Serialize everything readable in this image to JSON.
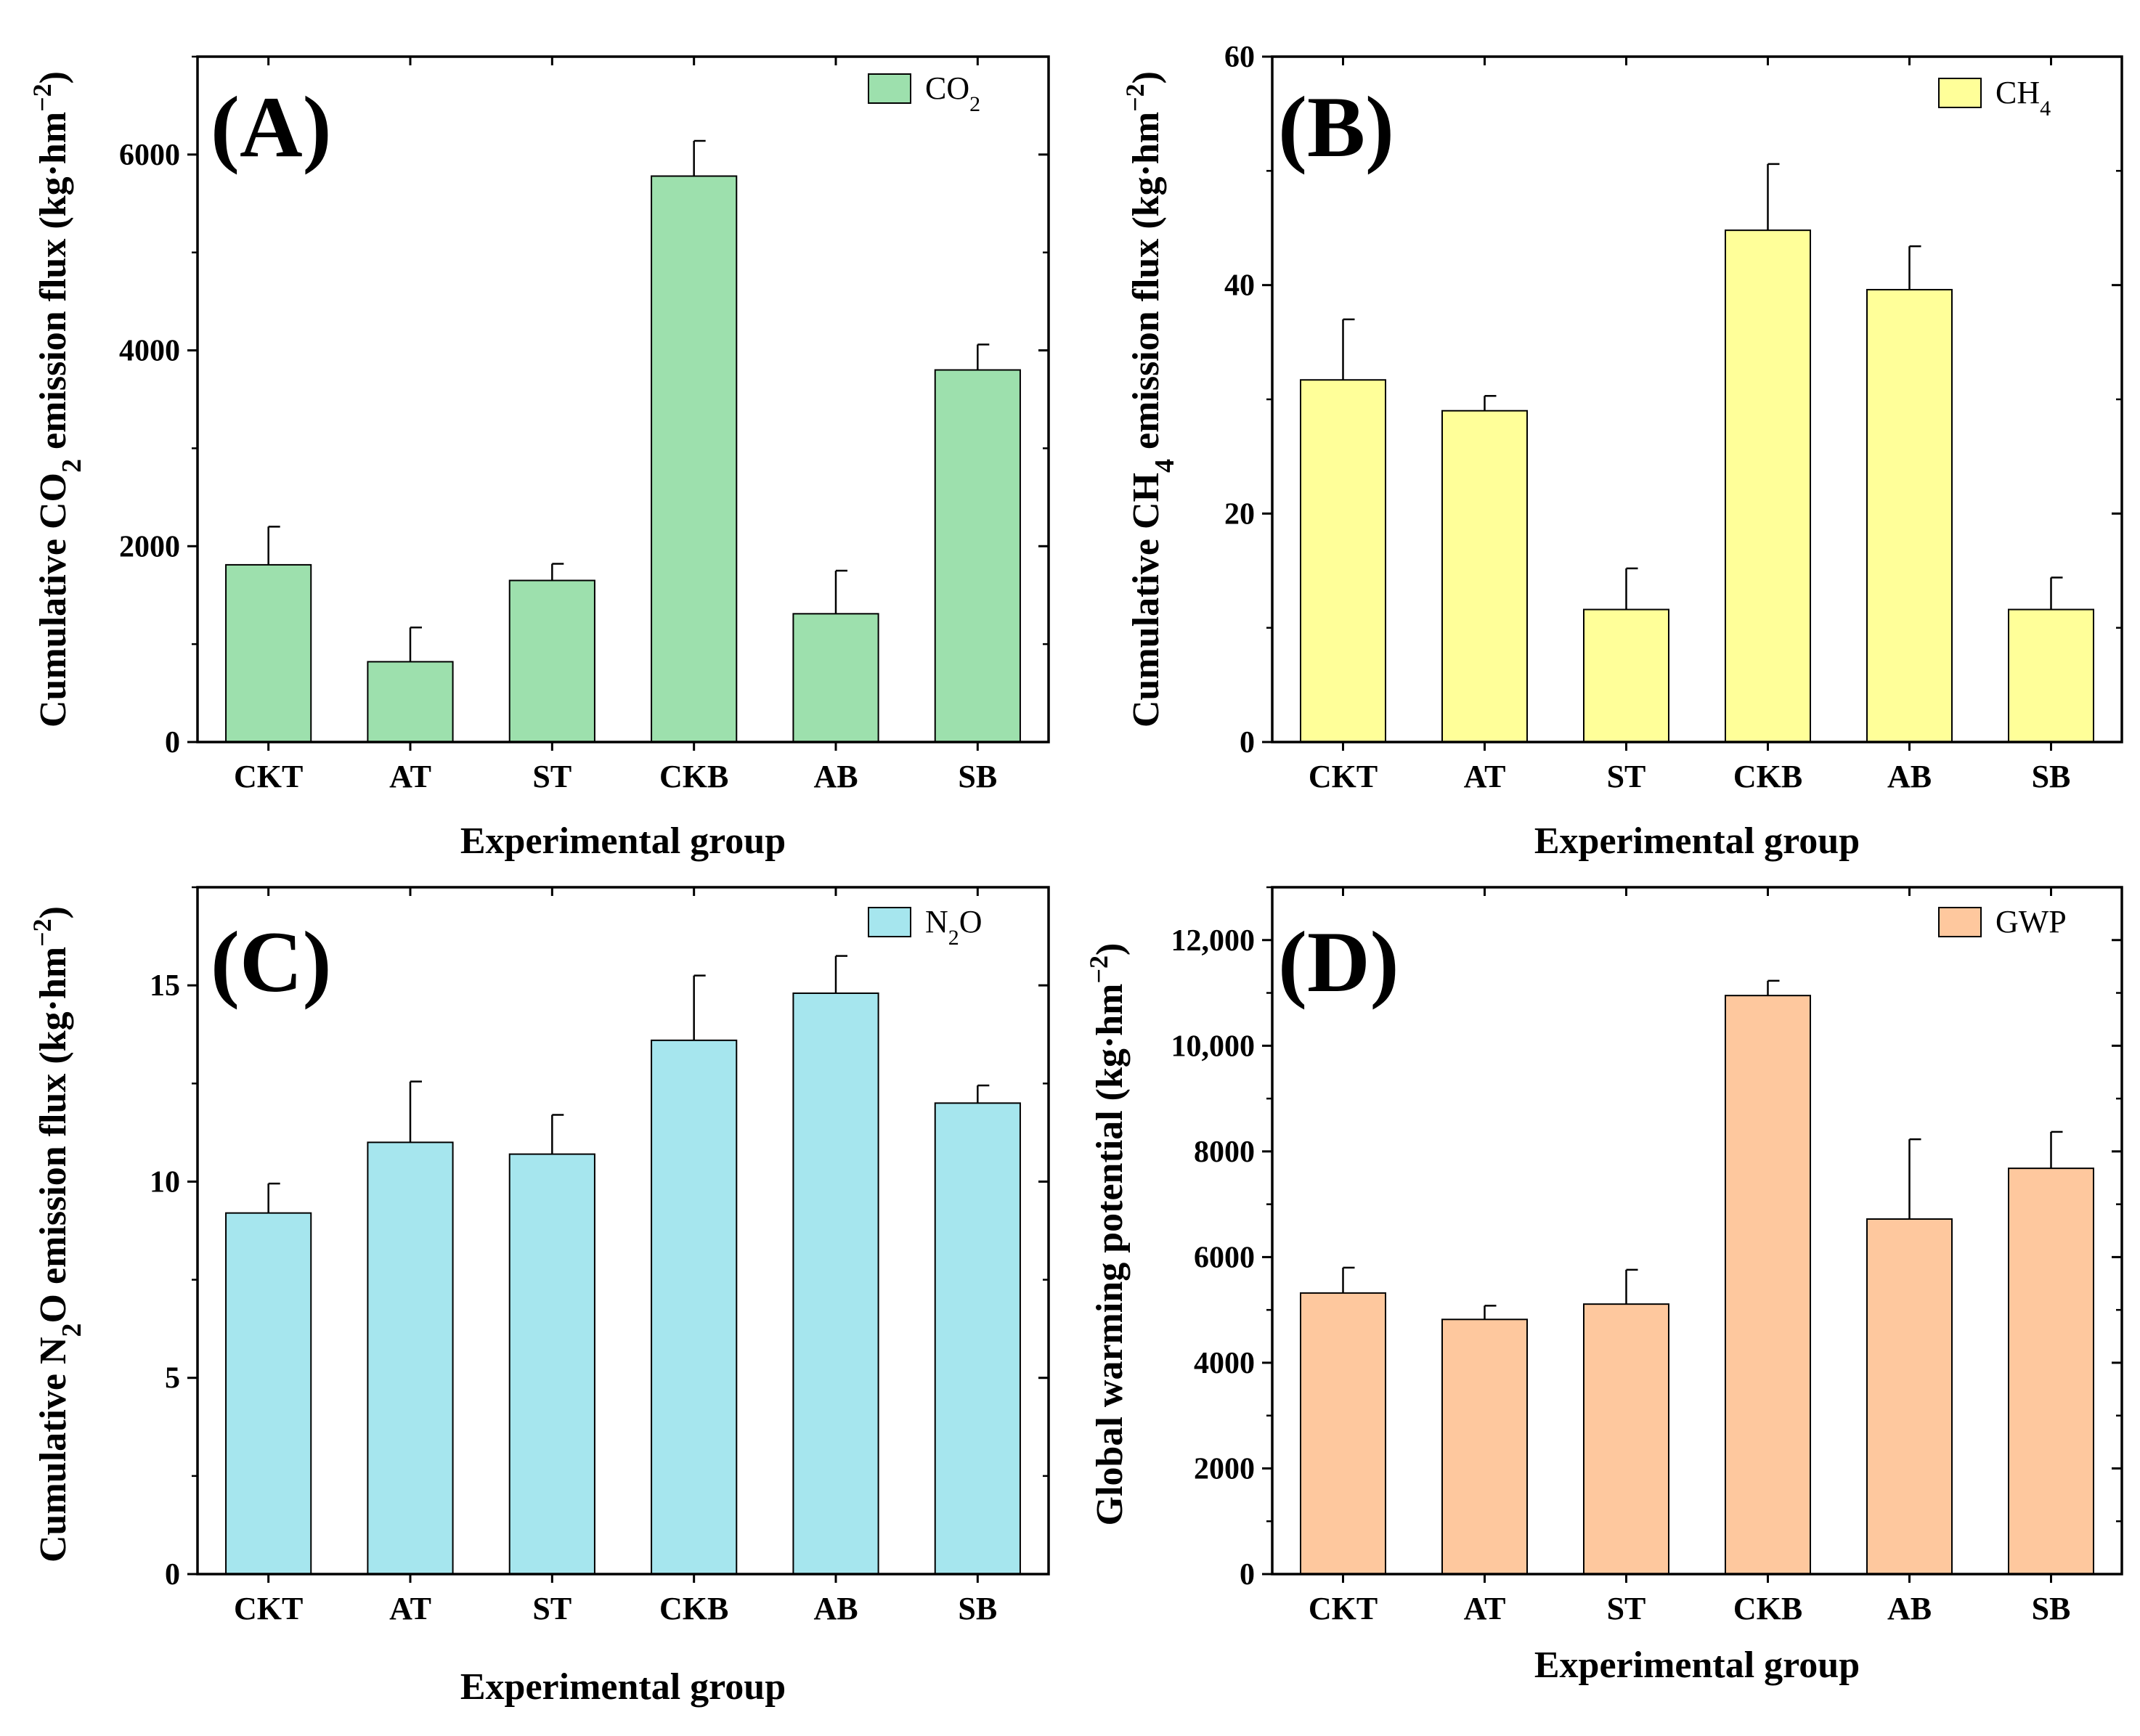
{
  "chart_data": [
    {
      "type": "bar",
      "panel": "(A)",
      "categories": [
        "CKT",
        "AT",
        "ST",
        "CKB",
        "AB",
        "SB"
      ],
      "series": [
        {
          "name": "CO2",
          "values": [
            1810,
            820,
            1650,
            5780,
            1310,
            3800
          ],
          "errors": [
            390,
            350,
            170,
            360,
            440,
            260
          ]
        }
      ],
      "legend": {
        "label": "CO",
        "sub": "2"
      },
      "xlabel": "Experimental group",
      "ylabel": {
        "pre": "Cumulative CO",
        "sub": "2",
        "post": " emission flux (kg·hm",
        "sup": "−2",
        "end": ")"
      },
      "ylim": [
        0,
        7000
      ],
      "yticks": [
        0,
        2000,
        4000,
        6000
      ],
      "ytick_labels": [
        "0",
        "2000",
        "4000",
        "6000"
      ],
      "color": "#9de0ad",
      "legend_position": "top-right"
    },
    {
      "type": "bar",
      "panel": "(B)",
      "categories": [
        "CKT",
        "AT",
        "ST",
        "CKB",
        "AB",
        "SB"
      ],
      "series": [
        {
          "name": "CH4",
          "values": [
            31.7,
            29.0,
            11.6,
            44.8,
            39.6,
            11.6
          ],
          "errors": [
            5.3,
            1.3,
            3.6,
            5.8,
            3.8,
            2.8
          ]
        }
      ],
      "legend": {
        "label": "CH",
        "sub": "4"
      },
      "xlabel": "Experimental group",
      "ylabel": {
        "pre": "Cumulative CH",
        "sub": "4",
        "post": " emission flux (kg·hm",
        "sup": "−2",
        "end": ")"
      },
      "ylim": [
        0,
        60
      ],
      "yticks": [
        0,
        20,
        40,
        60
      ],
      "ytick_labels": [
        "0",
        "20",
        "40",
        "60"
      ],
      "color": "#ffff99",
      "legend_position": "top-right"
    },
    {
      "type": "bar",
      "panel": "(C)",
      "categories": [
        "CKT",
        "AT",
        "ST",
        "CKB",
        "AB",
        "SB"
      ],
      "series": [
        {
          "name": "N2O",
          "values": [
            9.2,
            11.0,
            10.7,
            13.6,
            14.8,
            12.0
          ],
          "errors": [
            0.75,
            1.55,
            1.0,
            1.65,
            0.95,
            0.45
          ]
        }
      ],
      "legend": {
        "label": "N",
        "sub": "2",
        "post": "O"
      },
      "xlabel": "Experimental group",
      "ylabel": {
        "pre": "Cumulative N",
        "sub": "2",
        "post": "O emission flux (kg·hm",
        "sup": "−2",
        "end": ")"
      },
      "ylim": [
        0,
        17.5
      ],
      "yticks": [
        0,
        5,
        10,
        15
      ],
      "ytick_labels": [
        "0",
        "5",
        "10",
        "15"
      ],
      "color": "#a6e6ee",
      "legend_position": "top-right"
    },
    {
      "type": "bar",
      "panel": "(D)",
      "categories": [
        "CKT",
        "AT",
        "ST",
        "CKB",
        "AB",
        "SB"
      ],
      "series": [
        {
          "name": "GWP",
          "values": [
            5320,
            4820,
            5110,
            10950,
            6720,
            7680
          ],
          "errors": [
            480,
            260,
            650,
            280,
            1510,
            690
          ]
        }
      ],
      "legend": {
        "label": "GWP"
      },
      "xlabel": "Experimental group",
      "ylabel": {
        "pre": "Global warming potential (kg·hm",
        "sup": "−2",
        "end": ")"
      },
      "ylim": [
        0,
        13000
      ],
      "yticks": [
        0,
        2000,
        4000,
        6000,
        8000,
        10000,
        12000
      ],
      "ytick_labels": [
        "0",
        "2000",
        "4000",
        "6000",
        "8000",
        "10,000",
        "12,000"
      ],
      "color": "#fec89e",
      "legend_position": "top-right"
    }
  ]
}
